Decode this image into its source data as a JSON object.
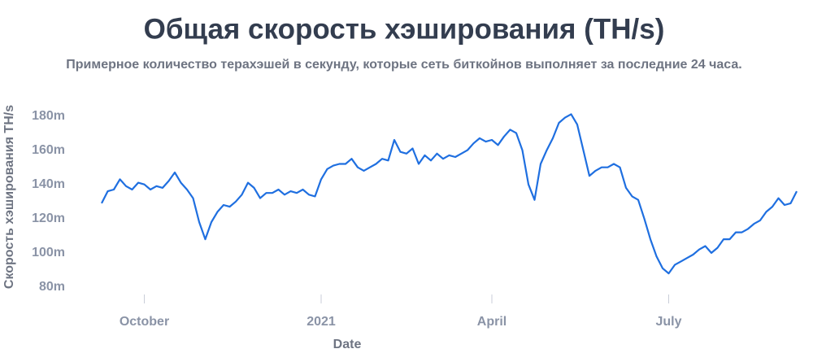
{
  "chart_data": {
    "type": "line",
    "title": "Общая скорость хэширования (TH/s)",
    "subtitle": "Примерное количество терахэшей в секунду, которые сеть биткойнов выполняет за последние 24 часа.",
    "x_label": "Date",
    "y_label": "Скорость хэширования TH/s",
    "categories": [
      null,
      null,
      null,
      null,
      null,
      null,
      null,
      "October",
      null,
      null,
      null,
      null,
      null,
      null,
      null,
      null,
      null,
      null,
      null,
      null,
      null,
      null,
      null,
      null,
      null,
      null,
      null,
      null,
      null,
      null,
      null,
      null,
      null,
      null,
      null,
      null,
      "2021",
      null,
      null,
      null,
      null,
      null,
      null,
      null,
      null,
      null,
      null,
      null,
      null,
      null,
      null,
      null,
      null,
      null,
      null,
      null,
      null,
      null,
      null,
      null,
      null,
      null,
      null,
      null,
      "April",
      null,
      null,
      null,
      null,
      null,
      null,
      null,
      null,
      null,
      null,
      null,
      null,
      null,
      null,
      null,
      null,
      null,
      null,
      null,
      null,
      null,
      null,
      null,
      null,
      null,
      null,
      null,
      null,
      "July",
      null,
      null,
      null,
      null,
      null,
      null,
      null,
      null,
      null,
      null,
      null,
      null,
      null,
      null,
      null,
      null,
      null,
      null,
      null,
      null,
      null
    ],
    "values": [
      129,
      136,
      137,
      143,
      139,
      137,
      141,
      140,
      137,
      139,
      138,
      142,
      147,
      141,
      137,
      132,
      118,
      108,
      118,
      124,
      128,
      127,
      130,
      134,
      141,
      138,
      132,
      135,
      135,
      137,
      134,
      136,
      135,
      137,
      134,
      133,
      143,
      149,
      151,
      152,
      152,
      155,
      150,
      148,
      150,
      152,
      155,
      154,
      166,
      159,
      158,
      161,
      152,
      157,
      154,
      158,
      155,
      157,
      156,
      158,
      160,
      164,
      167,
      165,
      166,
      163,
      168,
      172,
      170,
      160,
      140,
      131,
      152,
      160,
      167,
      176,
      179,
      181,
      175,
      160,
      145,
      148,
      150,
      150,
      152,
      150,
      138,
      133,
      131,
      120,
      108,
      98,
      91,
      88,
      93,
      95,
      97,
      99,
      102,
      104,
      100,
      103,
      108,
      108,
      112,
      112,
      114,
      117,
      119,
      124,
      127,
      132,
      128,
      129,
      136
    ],
    "color": "#1f6fe0",
    "ylim": [
      75,
      190
    ],
    "yticks": [
      {
        "value": 80,
        "label": "80m"
      },
      {
        "value": 100,
        "label": "100m"
      },
      {
        "value": 120,
        "label": "120m"
      },
      {
        "value": 140,
        "label": "140m"
      },
      {
        "value": 160,
        "label": "160m"
      },
      {
        "value": 180,
        "label": "180m"
      }
    ],
    "grid": false
  }
}
